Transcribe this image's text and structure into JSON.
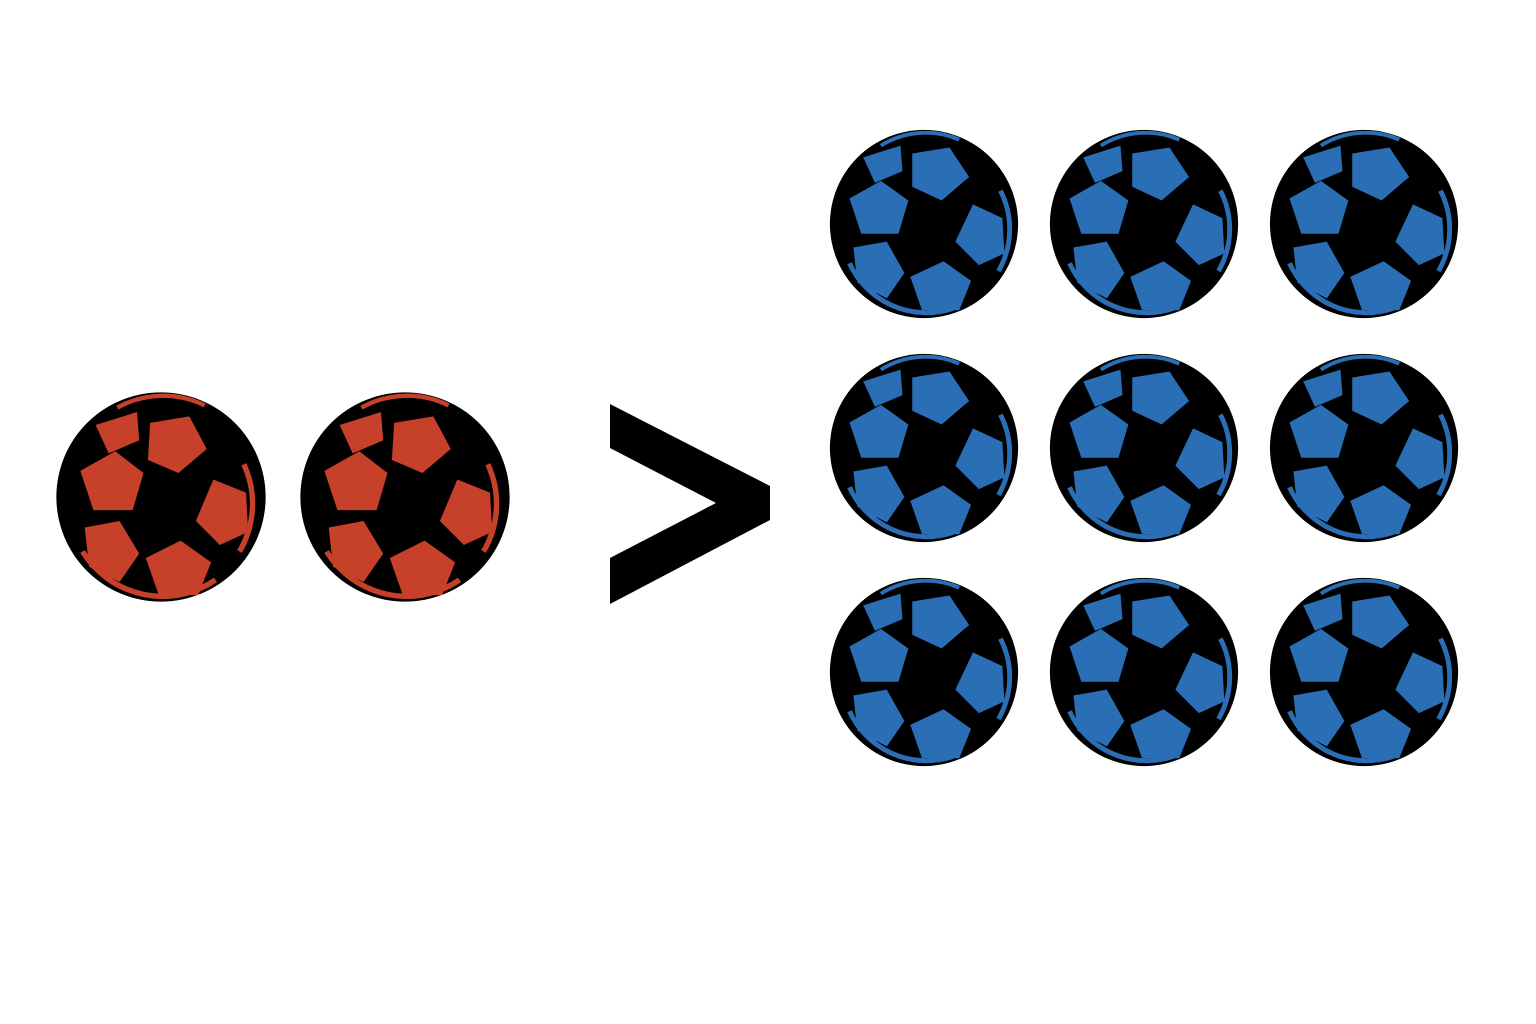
{
  "left_group": {
    "count": 2,
    "icon": "soccer-ball-icon",
    "color": "#c7402a"
  },
  "operator": {
    "symbol": ">",
    "icon": "greater-than-icon"
  },
  "right_group": {
    "count": 9,
    "icon": "soccer-ball-icon",
    "color": "#2a6fb5"
  }
}
